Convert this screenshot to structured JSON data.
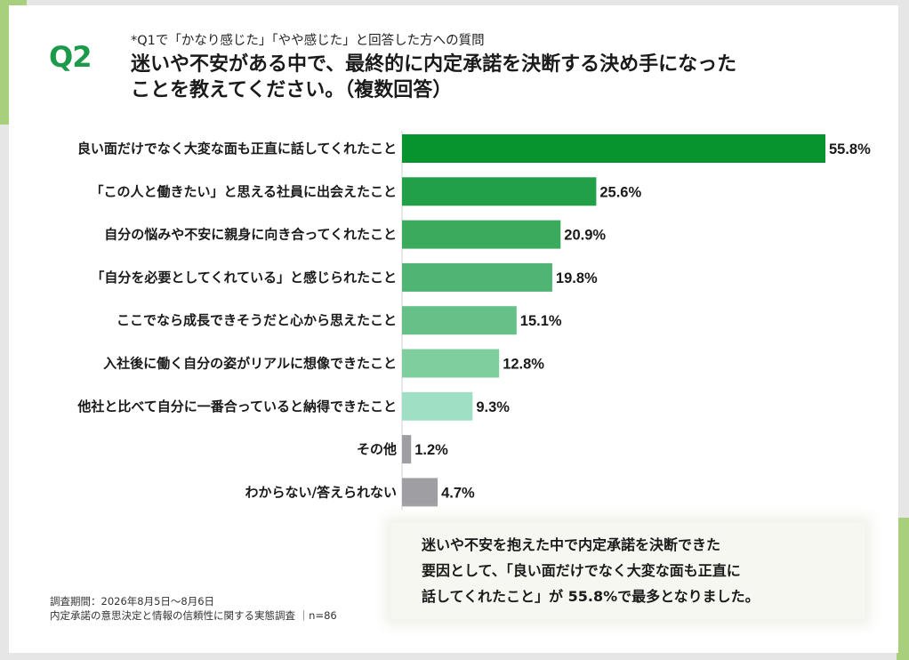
{
  "header": {
    "q_label": "Q2",
    "pre_title": "*Q1で「かなり感じた」「やや感じた」と回答した方への質問",
    "title_line1": "迷いや不安がある中で、最終的に内定承諾を決断する決め手になった",
    "title_line2": "ことを教えてください。（複数回答）"
  },
  "chart_data": {
    "type": "bar",
    "orientation": "horizontal",
    "xlim": [
      0,
      60
    ],
    "categories": [
      "良い面だけでなく大変な面も正直に話してくれたこと",
      "「この人と働きたい」と思える社員に出会えたこと",
      "自分の悩みや不安に親身に向き合ってくれたこと",
      "「自分を必要としてくれている」と感じられたこと",
      "ここでなら成長できそうだと心から思えたこと",
      "入社後に働く自分の姿がリアルに想像できたこと",
      "他社と比べて自分に一番合っていると納得できたこと",
      "その他",
      "わからない/答えられない"
    ],
    "values": [
      55.8,
      25.6,
      20.9,
      19.8,
      15.1,
      12.8,
      9.3,
      1.2,
      4.7
    ],
    "value_labels": [
      "55.8%",
      "25.6%",
      "20.9%",
      "19.8%",
      "15.1%",
      "12.8%",
      "9.3%",
      "1.2%",
      "4.7%"
    ],
    "colors": [
      "#07942f",
      "#22a048",
      "#3aaa5d",
      "#4fb474",
      "#66c188",
      "#7fcf9e",
      "#9fe0c5",
      "#9f9fa3",
      "#9f9fa3"
    ],
    "grid": false,
    "legend": "none"
  },
  "footer": {
    "survey_period": "調査期間：2026年8月5日～8月6日",
    "survey_name": "内定承諾の意思決定と情報の信頼性に関する実態調査 ｜n=86"
  },
  "summary": {
    "line1": "迷いや不安を抱えた中で内定承諾を決断できた",
    "line2": "要因として、「良い面だけでなく大変な面も正直に",
    "line3": "話してくれたこと」が 55.8%で最多となりました。"
  }
}
